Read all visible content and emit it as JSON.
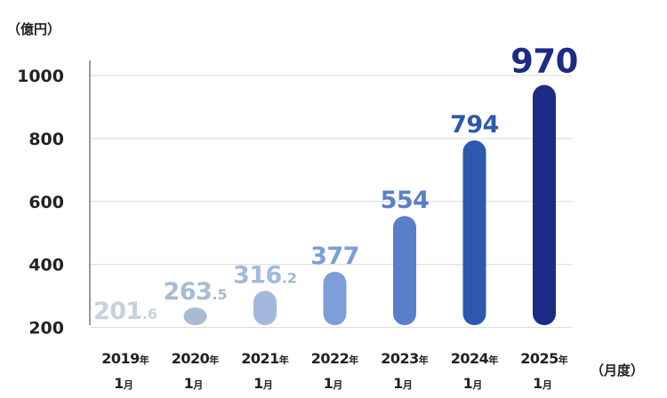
{
  "chart_data": {
    "type": "bar",
    "y_unit_label": "（億円）",
    "x_unit_label": "（月度）",
    "ylim": [
      0,
      1000
    ],
    "yticks": [
      200,
      400,
      600,
      800,
      1000
    ],
    "grid": true,
    "categories": [
      {
        "year": "2019",
        "year_suffix": "年",
        "month": "1",
        "month_suffix": "月"
      },
      {
        "year": "2020",
        "year_suffix": "年",
        "month": "1",
        "month_suffix": "月"
      },
      {
        "year": "2021",
        "year_suffix": "年",
        "month": "1",
        "month_suffix": "月"
      },
      {
        "year": "2022",
        "year_suffix": "年",
        "month": "1",
        "month_suffix": "月"
      },
      {
        "year": "2023",
        "year_suffix": "年",
        "month": "1",
        "month_suffix": "月"
      },
      {
        "year": "2024",
        "year_suffix": "年",
        "month": "1",
        "month_suffix": "月"
      },
      {
        "year": "2025",
        "year_suffix": "年",
        "month": "1",
        "month_suffix": "月"
      }
    ],
    "values": [
      201.6,
      263.5,
      316.2,
      377,
      554,
      794,
      970
    ],
    "value_labels": [
      {
        "main": "201",
        "decimal": ".6"
      },
      {
        "main": "263",
        "decimal": ".5"
      },
      {
        "main": "316",
        "decimal": ".2"
      },
      {
        "main": "377",
        "decimal": ""
      },
      {
        "main": "554",
        "decimal": ""
      },
      {
        "main": "794",
        "decimal": ""
      },
      {
        "main": "970",
        "decimal": ""
      }
    ],
    "colors": [
      "#c5d2e0",
      "#a9bccf",
      "#a4b8dd",
      "#7d9ed6",
      "#5a7fc8",
      "#2d58ae",
      "#1d2b86"
    ]
  }
}
